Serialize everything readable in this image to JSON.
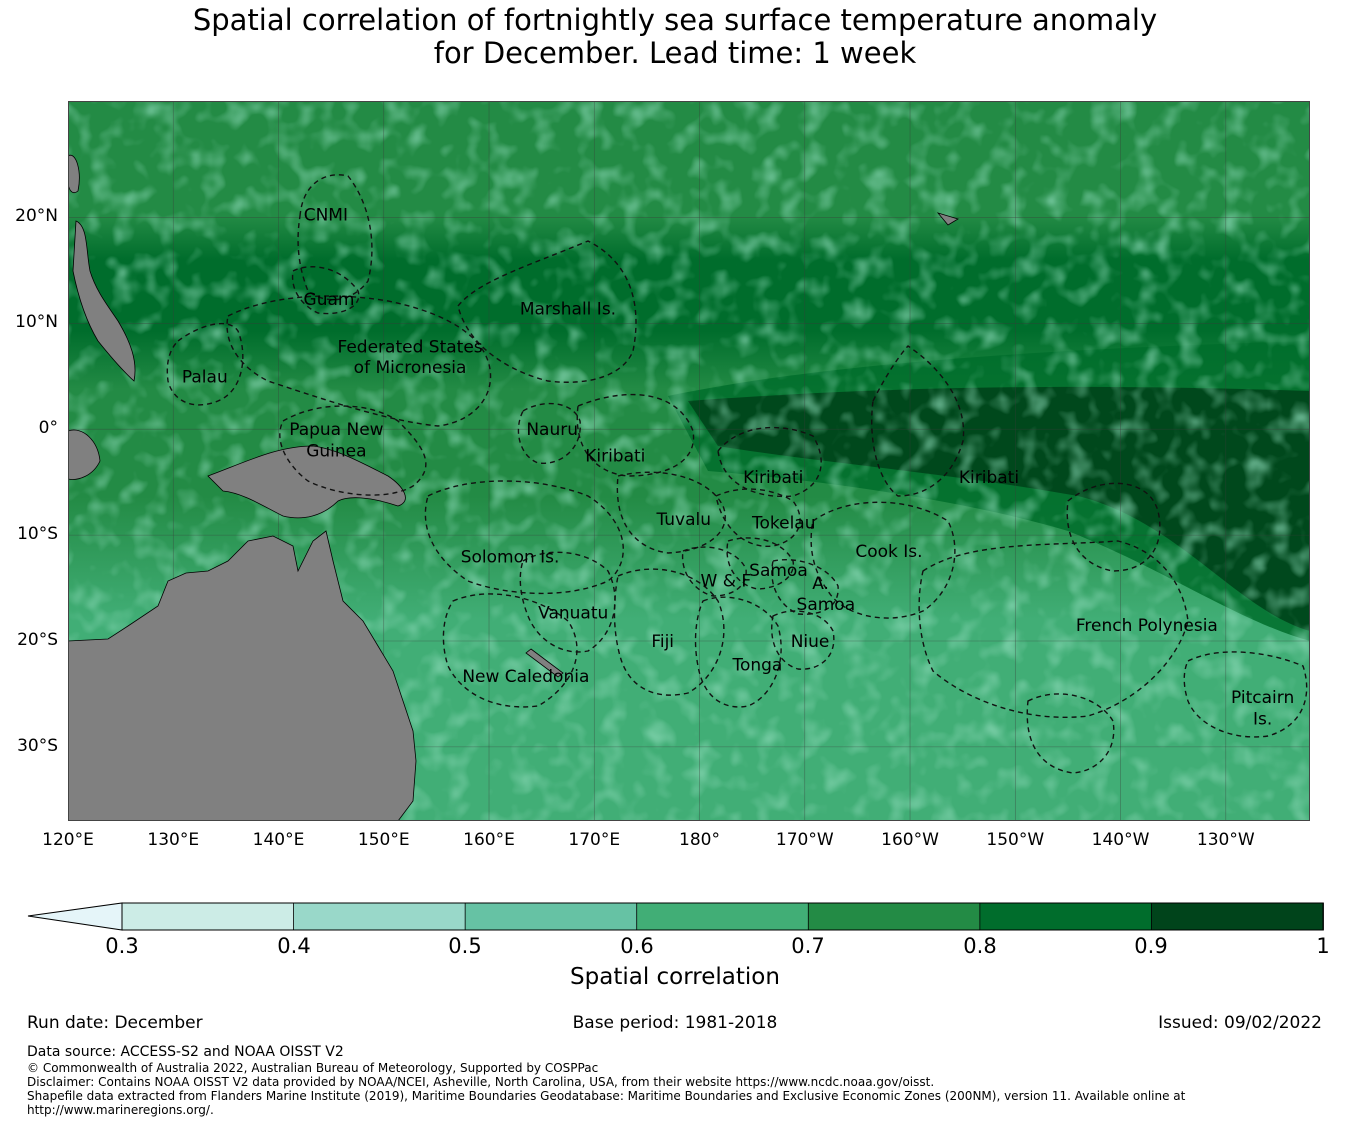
{
  "title": {
    "line1": "Spatial correlation of fortnightly sea surface temperature anomaly",
    "line2": "for December. Lead time: 1 week"
  },
  "map": {
    "extent": {
      "lon_min": 120,
      "lon_max": 238,
      "lat_min": -37,
      "lat_max": 31
    },
    "lat_labels": [
      "20°N",
      "10°N",
      "0°",
      "10°S",
      "20°S",
      "30°S"
    ],
    "lon_labels": [
      "120°E",
      "130°E",
      "140°E",
      "150°E",
      "160°E",
      "170°E",
      "180°",
      "170°W",
      "160°W",
      "150°W",
      "140°W",
      "130°W"
    ],
    "colors": {
      "land": "#808080",
      "ocean_base": "#238b45",
      "boundary": "#111111"
    },
    "regions": [
      {
        "name": "CNMI",
        "lon": 144.5,
        "lat": 20.3
      },
      {
        "name": "Guam",
        "lon": 144.8,
        "lat": 12.3
      },
      {
        "name": "Marshall Is.",
        "lon": 167.5,
        "lat": 11.4
      },
      {
        "name": "Federated States",
        "lon": 152.5,
        "lat": 7.8
      },
      {
        "name": "of Micronesia",
        "lon": 152.5,
        "lat": 5.9
      },
      {
        "name": "Palau",
        "lon": 133.0,
        "lat": 5.0
      },
      {
        "name": "Papua New",
        "lon": 145.5,
        "lat": 0.0
      },
      {
        "name": "Guinea",
        "lon": 145.5,
        "lat": -2.0
      },
      {
        "name": "Nauru",
        "lon": 166.0,
        "lat": 0.0
      },
      {
        "name": "Kiribati",
        "lon": 172.0,
        "lat": -2.5
      },
      {
        "name": "Kiribati",
        "lon": 187.0,
        "lat": -4.5
      },
      {
        "name": "Kiribati",
        "lon": 207.5,
        "lat": -4.5
      },
      {
        "name": "Tuvalu",
        "lon": 178.5,
        "lat": -8.5
      },
      {
        "name": "Tokelau",
        "lon": 188.0,
        "lat": -8.8
      },
      {
        "name": "Cook Is.",
        "lon": 198.0,
        "lat": -11.5
      },
      {
        "name": "Solomon Is.",
        "lon": 162.0,
        "lat": -12.0
      },
      {
        "name": "Samoa",
        "lon": 187.5,
        "lat": -13.3
      },
      {
        "name": "W & F",
        "lon": 182.5,
        "lat": -14.3
      },
      {
        "name": "A.",
        "lon": 191.5,
        "lat": -14.5
      },
      {
        "name": "Samoa",
        "lon": 192.0,
        "lat": -16.5
      },
      {
        "name": "Vanuatu",
        "lon": 168.0,
        "lat": -17.3
      },
      {
        "name": "French Polynesia",
        "lon": 222.5,
        "lat": -18.5
      },
      {
        "name": "Fiji",
        "lon": 176.5,
        "lat": -20.0
      },
      {
        "name": "Niue",
        "lon": 190.5,
        "lat": -20.0
      },
      {
        "name": "Tonga",
        "lon": 185.5,
        "lat": -22.2
      },
      {
        "name": "New Caledonia",
        "lon": 163.5,
        "lat": -23.3
      },
      {
        "name": "Pitcairn",
        "lon": 233.5,
        "lat": -25.3
      },
      {
        "name": "Is.",
        "lon": 233.5,
        "lat": -27.3
      }
    ]
  },
  "colorbar": {
    "ticks": [
      "0.3",
      "0.4",
      "0.5",
      "0.6",
      "0.7",
      "0.8",
      "0.9",
      "1"
    ],
    "colors": [
      "#ccece6",
      "#99d8c9",
      "#66c2a4",
      "#41ae76",
      "#238b45",
      "#006d2c",
      "#00441b"
    ],
    "under_color": "#e5f5f9",
    "label": "Spatial correlation"
  },
  "info": {
    "run_date": "Run date: December",
    "base_period": "Base period: 1981-2018",
    "issued": "Issued: 09/02/2022"
  },
  "footer": {
    "data_source": "Data source: ACCESS-S2 and NOAA OISST V2",
    "copyright": "© Commonwealth of Australia 2022, Australian Bureau of Meteorology, Supported by COSPPac",
    "disclaimer": "Disclaimer: Contains NOAA OISST V2 data provided by NOAA/NCEI, Asheville, North Carolina, USA, from their website https://www.ncdc.noaa.gov/oisst.",
    "shapefile1": "Shapefile data extracted from Flanders Marine Institute (2019), Maritime Boundaries Geodatabase: Maritime Boundaries and Exclusive Economic Zones (200NM), version 11. Available online at",
    "shapefile2": "http://www.marineregions.org/."
  }
}
